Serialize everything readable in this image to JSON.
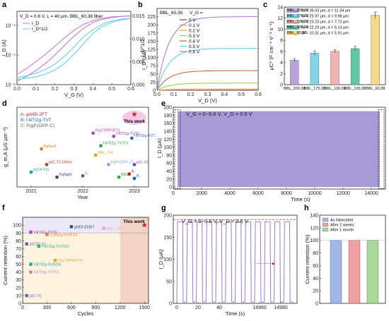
{
  "chart_data": [
    {
      "panel": "a",
      "type": "line",
      "annotation": "V_D = 0.6 V, L = 40 μm, BBL_60,38 fiber",
      "xlabel": "V_G (V)",
      "ylabel_left": "I_D (A)",
      "ylabel_right": "I_D^1/2",
      "xlim": [
        0,
        0.6
      ],
      "xticks": [
        "0.0",
        "0.1",
        "0.2",
        "0.3",
        "0.4",
        "0.5",
        "0.6"
      ],
      "ylim_left_log": [
        1e-06,
        0.0003
      ],
      "yticks_left": [
        "10⁻⁴",
        "10⁻⁵",
        "10⁻⁶"
      ],
      "ylim_right": [
        0,
        0.016
      ],
      "yticks_right": [
        "0.015",
        "0.010",
        "0.005",
        "0.000"
      ],
      "legend": [
        "I_D",
        "I_D^1/2"
      ],
      "series": [
        {
          "name": "I_D fwd",
          "color": "#c070d8",
          "axis": "left",
          "x": [
            0,
            0.05,
            0.1,
            0.15,
            0.2,
            0.25,
            0.3,
            0.35,
            0.4,
            0.45,
            0.5,
            0.55,
            0.6
          ],
          "y": [
            1.3e-06,
            1.9e-06,
            3e-06,
            5.2e-06,
            1e-05,
            2.1e-05,
            4.3e-05,
            8e-05,
            0.000125,
            0.00016,
            0.000185,
            0.0002,
            0.00021
          ]
        },
        {
          "name": "I_D rev",
          "color": "#c070d8",
          "axis": "left",
          "x": [
            0,
            0.05,
            0.1,
            0.15,
            0.2,
            0.25,
            0.3,
            0.35,
            0.4,
            0.45,
            0.5,
            0.55,
            0.6
          ],
          "y": [
            2.2e-06,
            3.5e-06,
            6e-06,
            1.05e-05,
            2e-05,
            3.8e-05,
            6.8e-05,
            0.000108,
            0.000145,
            0.000175,
            0.000195,
            0.000205,
            0.00021
          ]
        },
        {
          "name": "I_D^1/2 fwd",
          "color": "#5ec8e8",
          "axis": "right",
          "x": [
            0,
            0.05,
            0.1,
            0.15,
            0.2,
            0.25,
            0.3,
            0.35,
            0.4,
            0.45,
            0.5,
            0.55,
            0.6
          ],
          "y": [
            0.0011,
            0.0014,
            0.0017,
            0.0023,
            0.0032,
            0.0046,
            0.0066,
            0.0089,
            0.0112,
            0.0127,
            0.0136,
            0.0141,
            0.0145
          ]
        },
        {
          "name": "I_D^1/2 rev",
          "color": "#5ec8e8",
          "axis": "right",
          "x": [
            0,
            0.05,
            0.1,
            0.15,
            0.2,
            0.25,
            0.3,
            0.35,
            0.4,
            0.45,
            0.5,
            0.55,
            0.6
          ],
          "y": [
            0.0015,
            0.0019,
            0.0025,
            0.0033,
            0.0045,
            0.0062,
            0.0082,
            0.0104,
            0.012,
            0.0132,
            0.0139,
            0.0143,
            0.0145
          ]
        }
      ]
    },
    {
      "panel": "b",
      "type": "line",
      "legend_title": "BBL_60,38",
      "legend_header": "V_G =",
      "xlabel": "V_D (V)",
      "ylabel": "I_D (μA)",
      "xlim": [
        0,
        0.6
      ],
      "xticks": [
        "0.0",
        "0.1",
        "0.2",
        "0.3",
        "0.4",
        "0.5",
        "0.6"
      ],
      "ylim": [
        0,
        250
      ],
      "yticks": [
        "0",
        "25",
        "50",
        "75",
        "100",
        "125",
        "150",
        "175",
        "200",
        "225"
      ],
      "series": [
        {
          "name": "0 V",
          "color": "#555555",
          "sat": 0.5
        },
        {
          "name": "0.1 V",
          "color": "#f08080",
          "sat": 1.5
        },
        {
          "name": "0.2 V",
          "color": "#e6a23c",
          "sat": 4
        },
        {
          "name": "0.3 V",
          "color": "#9bc53d",
          "sat": 22
        },
        {
          "name": "0.4 V",
          "color": "#c06030",
          "sat": 60
        },
        {
          "name": "0.5 V",
          "color": "#5ec8e8",
          "sat": 128
        },
        {
          "name": "0.6 V",
          "color": "#b070d0",
          "sat": 225
        }
      ]
    },
    {
      "panel": "c",
      "type": "bar",
      "ylabel": "μC* (F cm⁻¹ V⁻¹ s⁻¹)",
      "ylim": [
        0,
        14
      ],
      "yticks": [
        "0",
        "2",
        "4",
        "6",
        "8",
        "10",
        "12",
        "14"
      ],
      "categories": [
        "BBL_200,38",
        "BBL_170,38",
        "BBL_130,38",
        "BBL_100,38",
        "BBL_60,38"
      ],
      "values": [
        4.4,
        5.7,
        6.0,
        6.5,
        12.5
      ],
      "errors": [
        0.3,
        0.4,
        0.3,
        0.4,
        0.6
      ],
      "colors": [
        "#b9a3dc",
        "#7fd6e4",
        "#f2b4b0",
        "#5fc7a4",
        "#f3d98a"
      ],
      "legend": [
        {
          "name": "BBL_200,38",
          "text": "W = 36.03 μm, d = 11.34 μm"
        },
        {
          "name": "BBL_170,38",
          "text": "W = 25.97 μm, d = 9.98 μm"
        },
        {
          "name": "BBL_130,38",
          "text": "W = 23.23 μm, d = 7.72 μm"
        },
        {
          "name": "BBL_100,38",
          "text": "W = 22.23 μm, d = 6.13 μm"
        },
        {
          "name": "BBL_60,38",
          "text": "W = 10.31 μm, d = 5.91 μm"
        }
      ]
    },
    {
      "panel": "d",
      "type": "scatter",
      "xlabel": "Year",
      "ylabel": "g_m,A (μS μm⁻²)",
      "xticks": [
        "2021",
        "2022",
        "2023"
      ],
      "categories_legend": [
        "A: gAIID-2FT",
        "B: f-BTI2g-TVT",
        "C: P(gPzDPP-C)"
      ],
      "this_work": "This work",
      "points": [
        {
          "label": "P(gTDPP2FT)",
          "color": "#b040c0",
          "x": 2022.2,
          "y": 0.8
        },
        {
          "label": "f-BTI2g-TVTF",
          "color": "#b040c0",
          "x": 2022.6,
          "y": 0.75
        },
        {
          "label": "f-BTI2g-TVTCl",
          "color": "#2aa060",
          "x": 2022.35,
          "y": 0.6
        },
        {
          "label": "PgNaN",
          "color": "#c09020",
          "x": 2021.2,
          "y": 0.55
        },
        {
          "label": "BBL_TH",
          "color": "#f0a020",
          "x": 2022.25,
          "y": 0.45
        },
        {
          "label": "PgPzDPP-2T",
          "color": "#8fa0e0",
          "x": 2022.5,
          "y": 0.3
        },
        {
          "label": "p(C-T2-OMe)",
          "color": "#c04020",
          "x": 2021.3,
          "y": 0.3
        },
        {
          "label": "p(C4-T2)",
          "color": "#20a0a0",
          "x": 2021.0,
          "y": 0.18
        },
        {
          "label": "p(C-V)",
          "color": "#8040c0",
          "x": 2023.0,
          "y": 0.3
        },
        {
          "label": "PgNgN",
          "color": "#404080",
          "x": 2021.5,
          "y": 0.1
        },
        {
          "label": "BBL",
          "color": "#3aa040",
          "x": 2022.7,
          "y": 0.1
        },
        {
          "label": "A",
          "color": "#b02020",
          "x": 2022.9,
          "y": 0.15
        },
        {
          "label": "B",
          "color": "#2060c0",
          "x": 2023.0,
          "y": 0.08
        },
        {
          "label": "C",
          "color": "#606060",
          "x": 2022.0,
          "y": 0.12
        },
        {
          "label": "f-BTI2g-TVT",
          "color": "#3060c0",
          "x": 2022.95,
          "y": 0.72
        }
      ]
    },
    {
      "panel": "e",
      "type": "area",
      "annotation": "V_G = 0~0.6 V, V_D = 0.6 V",
      "xlabel": "Time (s)",
      "ylabel": "I_D (μA)",
      "xlim": [
        0,
        15000
      ],
      "xticks": [
        "0",
        "2000",
        "4000",
        "6000",
        "8000",
        "10000",
        "12000",
        "14000"
      ],
      "ylim": [
        -5,
        200
      ],
      "yticks": [
        "0",
        "20",
        "40",
        "60",
        "80",
        "100",
        "120",
        "140",
        "160",
        "180",
        "200"
      ],
      "value_high": 190,
      "value_low": 0,
      "color": "#a79ad6"
    },
    {
      "panel": "f",
      "type": "scatter",
      "xlabel": "Cycles",
      "ylabel": "Current retention (%)",
      "xlim": [
        0,
        1550
      ],
      "xticks": [
        "0",
        "300",
        "600",
        "900",
        "1200",
        "1500"
      ],
      "ylim": [
        0,
        110
      ],
      "yticks": [
        "0",
        "10",
        "20",
        "30",
        "40",
        "50",
        "60",
        "70",
        "80",
        "90",
        "100"
      ],
      "reference_line": "90",
      "this_work": "This work",
      "points": [
        {
          "label": "f-BTI2g-TVTF",
          "color": "#b040c0",
          "x": 100,
          "y": 91
        },
        {
          "label": "gNDI-EDBT",
          "color": "#206060",
          "x": 600,
          "y": 98
        },
        {
          "label": "BBL_TH",
          "color": "#f0a0c0",
          "x": 1000,
          "y": 96
        },
        {
          "label": "f-SeI2g-SVSCN",
          "color": "#e08040",
          "x": 300,
          "y": 88
        },
        {
          "label": "p(C2F-V)",
          "color": "#6060c0",
          "x": 50,
          "y": 76
        },
        {
          "label": "f-BTI2g-TVTCN",
          "color": "#30b070",
          "x": 200,
          "y": 73
        },
        {
          "label": "P(gTDPP2FT)",
          "color": "#d0b030",
          "x": 400,
          "y": 55
        },
        {
          "label": "f-BTI2g-SVSCN",
          "color": "#20a0a0",
          "x": 100,
          "y": 50
        },
        {
          "label": "f-BTI2g-TVTCl",
          "color": "#e070c0",
          "x": 100,
          "y": 40
        },
        {
          "label": "p(C-V)",
          "color": "#6060c0",
          "x": 50,
          "y": 10
        },
        {
          "label": "This work",
          "color": "#e02020",
          "x": 1500,
          "y": 100
        }
      ]
    },
    {
      "panel": "g",
      "type": "line",
      "annotation": "V_G = 0~0.6 V, V_D = 0.6 V",
      "xlabel": "Time (s)",
      "ylabel": "I_D (μA)",
      "xticks": [
        "0",
        "20",
        "40",
        "14960",
        "14980"
      ],
      "ylim": [
        0,
        200
      ],
      "yticks": [
        "0",
        "50",
        "100",
        "150",
        "200"
      ],
      "value_high": 185,
      "color": "#9a7ad8"
    },
    {
      "panel": "h",
      "type": "bar",
      "ylabel": "Current retention (%)",
      "ylim": [
        0,
        140
      ],
      "yticks": [
        "0",
        "20",
        "40",
        "60",
        "80",
        "100",
        "120",
        "140"
      ],
      "series": [
        {
          "name": "As fabricated",
          "color": "#9fb8e8",
          "value": 100
        },
        {
          "name": "After 2 weeks",
          "color": "#f0a0a0",
          "value": 100
        },
        {
          "name": "After 1 month",
          "color": "#a8d89a",
          "value": 100
        }
      ]
    }
  ],
  "panel_labels": [
    "a",
    "b",
    "c",
    "d",
    "e",
    "f",
    "g",
    "h"
  ]
}
